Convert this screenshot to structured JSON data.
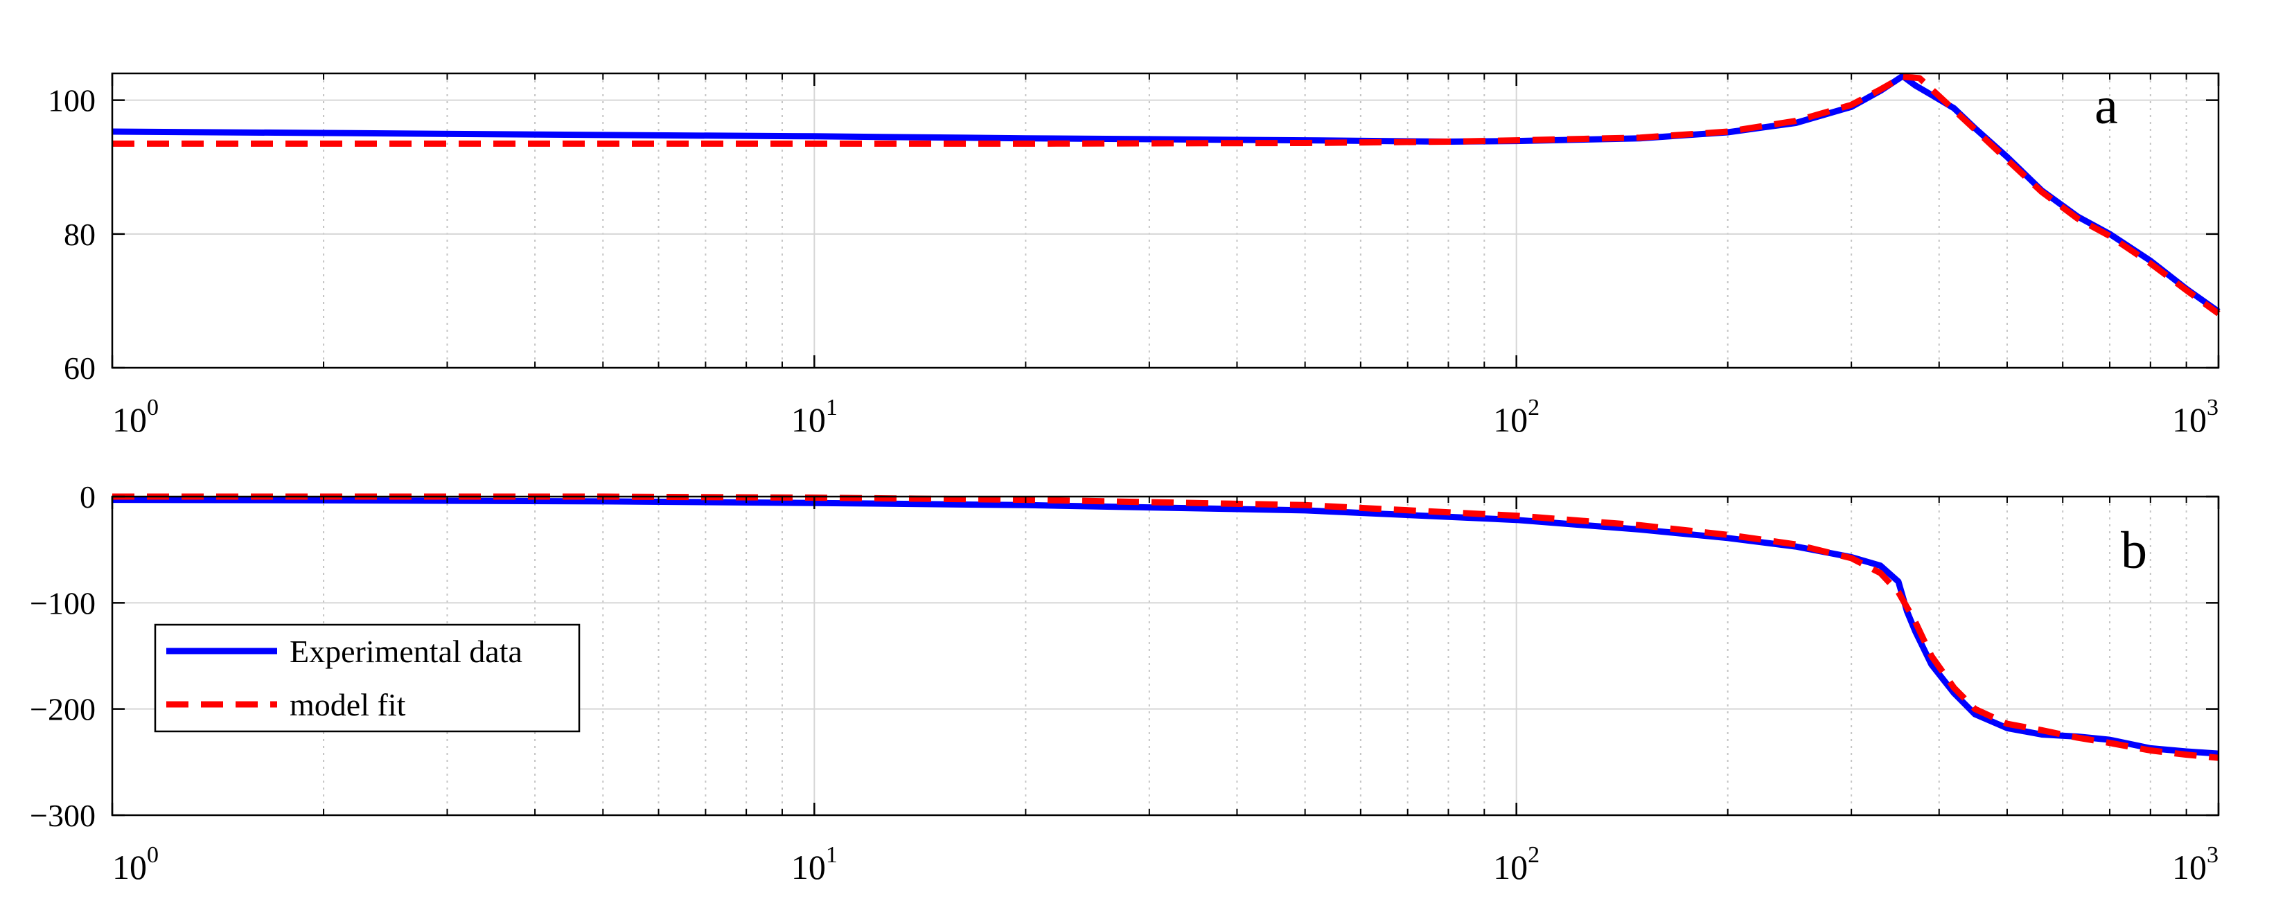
{
  "chart_data": [
    {
      "type": "line",
      "panel_label": "a",
      "xscale": "log",
      "xlim": [
        1,
        1000
      ],
      "ylim": [
        60,
        104
      ],
      "grid": true,
      "x_tick_values": [
        1,
        10,
        100,
        1000
      ],
      "x_tick_labels": [
        {
          "base": "10",
          "exp": "0"
        },
        {
          "base": "10",
          "exp": "1"
        },
        {
          "base": "10",
          "exp": "2"
        },
        {
          "base": "10",
          "exp": "3"
        }
      ],
      "y_ticks": [
        60,
        80,
        100
      ],
      "y_tick_labels": [
        "60",
        "80",
        "100"
      ],
      "series": [
        {
          "key": "experimental",
          "color": "#0000ff",
          "dash": "solid",
          "x": [
            1,
            2,
            5,
            10,
            20,
            50,
            80,
            100,
            150,
            200,
            250,
            300,
            330,
            355,
            370,
            390,
            420,
            450,
            500,
            560,
            630,
            700,
            800,
            900,
            1000
          ],
          "y": [
            95.3,
            95.1,
            94.8,
            94.6,
            94.3,
            94.0,
            93.8,
            93.9,
            94.3,
            95.2,
            96.6,
            99.0,
            101.4,
            103.6,
            102.2,
            100.8,
            98.8,
            95.8,
            91.5,
            86.5,
            82.6,
            80.0,
            76.0,
            71.8,
            68.4
          ]
        },
        {
          "key": "model",
          "color": "#ff0000",
          "dash": "dashed",
          "x": [
            1,
            2,
            5,
            10,
            20,
            50,
            80,
            100,
            150,
            200,
            250,
            300,
            330,
            355,
            375,
            400,
            450,
            500,
            560,
            630,
            700,
            800,
            900,
            1000
          ],
          "y": [
            93.5,
            93.5,
            93.5,
            93.5,
            93.5,
            93.6,
            93.8,
            94.0,
            94.4,
            95.3,
            96.9,
            99.3,
            101.6,
            103.5,
            103.3,
            100.6,
            95.6,
            91.1,
            86.3,
            82.3,
            79.7,
            75.6,
            71.6,
            68.1
          ]
        }
      ]
    },
    {
      "type": "line",
      "panel_label": "b",
      "xscale": "log",
      "xlim": [
        1,
        1000
      ],
      "ylim": [
        -300,
        0
      ],
      "grid": true,
      "x_tick_values": [
        1,
        10,
        100,
        1000
      ],
      "x_tick_labels": [
        {
          "base": "10",
          "exp": "0"
        },
        {
          "base": "10",
          "exp": "1"
        },
        {
          "base": "10",
          "exp": "2"
        },
        {
          "base": "10",
          "exp": "3"
        }
      ],
      "y_ticks": [
        0,
        -100,
        -200,
        -300
      ],
      "y_tick_labels": [
        "0",
        "−100",
        "−200",
        "−300"
      ],
      "legend": {
        "location": "lower-left",
        "entries": [
          {
            "label": "Experimental data",
            "color": "#0000ff",
            "dash": "solid"
          },
          {
            "label": "model fit",
            "color": "#ff0000",
            "dash": "dashed"
          }
        ]
      },
      "series": [
        {
          "key": "experimental",
          "color": "#0000ff",
          "dash": "solid",
          "x": [
            1,
            2,
            5,
            10,
            20,
            50,
            100,
            150,
            200,
            250,
            300,
            330,
            350,
            360,
            370,
            390,
            420,
            450,
            500,
            560,
            630,
            700,
            800,
            900,
            1000
          ],
          "y": [
            -3,
            -3.5,
            -4.5,
            -6,
            -8,
            -13,
            -22,
            -31,
            -39,
            -47,
            -57,
            -65,
            -80,
            -108,
            -127,
            -158,
            -185,
            -205,
            -218,
            -224,
            -226,
            -229,
            -237,
            -240,
            -242
          ]
        },
        {
          "key": "model",
          "color": "#ff0000",
          "dash": "dashed",
          "x": [
            1,
            2,
            5,
            10,
            20,
            50,
            100,
            150,
            200,
            250,
            300,
            330,
            350,
            370,
            390,
            420,
            450,
            500,
            560,
            630,
            700,
            800,
            900,
            1000
          ],
          "y": [
            0,
            0,
            0,
            -1,
            -3,
            -8,
            -18,
            -27,
            -36,
            -45,
            -58,
            -72,
            -90,
            -118,
            -150,
            -180,
            -200,
            -214,
            -220,
            -227,
            -232,
            -239,
            -243,
            -246
          ]
        }
      ]
    }
  ]
}
